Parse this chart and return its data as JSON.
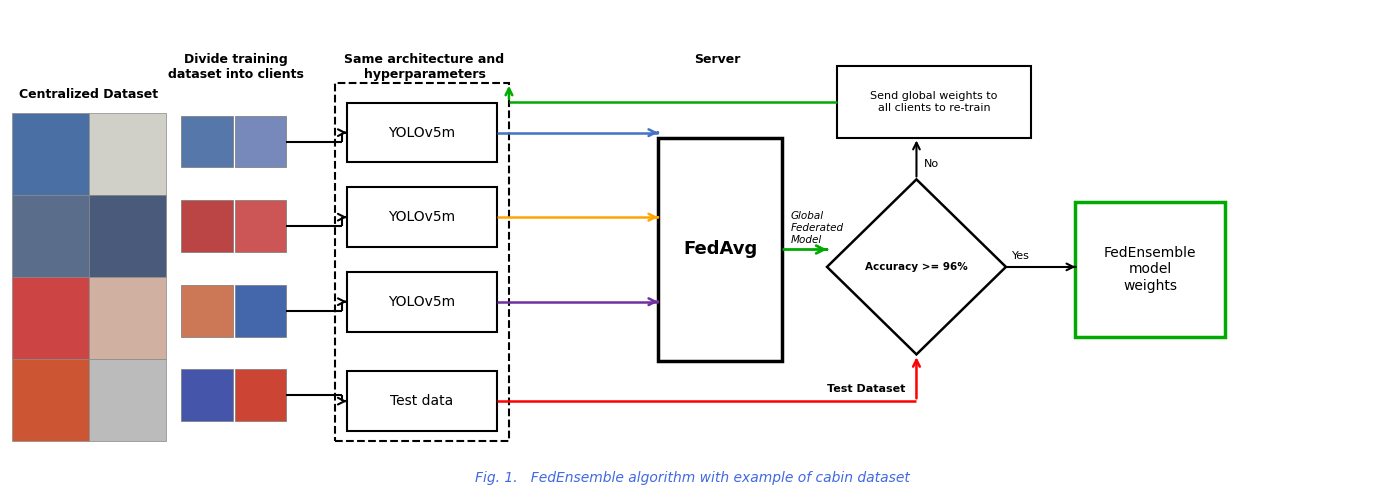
{
  "caption": "Fig. 1.   FedEnsemble algorithm with example of cabin dataset",
  "caption_color": "#4169E1",
  "bg_color": "#ffffff",
  "label_centralized": "Centralized Dataset",
  "label_divide": "Divide training\ndataset into clients",
  "label_same_arch": "Same architecture and\nhyperparameters",
  "label_server": "Server",
  "label_yolo1": "YOLOv5m",
  "label_yolo2": "YOLOv5m",
  "label_yolo3": "YOLOv5m",
  "label_testdata": "Test data",
  "label_fedavg": "FedAvg",
  "label_accuracy": "Accuracy >= 96%",
  "label_global": "Global\nFederated\nModel",
  "label_send": "Send global weights to\nall clients to re-train",
  "label_fedensemble": "FedEnsemble\nmodel\nweights",
  "label_test_dataset": "Test Dataset",
  "label_no": "No",
  "label_yes": "Yes",
  "arrow_blue": "#4472C4",
  "arrow_orange": "#FFA500",
  "arrow_purple": "#7030A0",
  "arrow_red": "#FF0000",
  "arrow_green": "#00AA00",
  "arrow_black": "#000000"
}
